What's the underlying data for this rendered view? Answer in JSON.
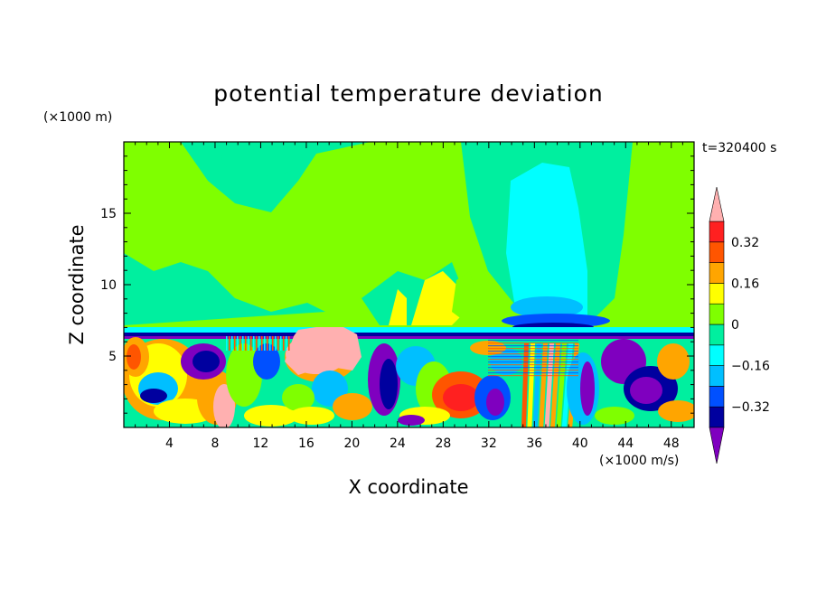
{
  "chart_data": {
    "type": "heatmap",
    "title": "potential temperature deviation",
    "xlabel": "X coordinate",
    "ylabel": "Z coordinate",
    "x_unit": "(×1000 m/s)",
    "y_unit": "(×1000 m)",
    "time_label": "t=320400 s",
    "xlim": [
      0,
      50
    ],
    "ylim": [
      0,
      20
    ],
    "x_ticks": [
      4,
      8,
      12,
      16,
      20,
      24,
      28,
      32,
      36,
      40,
      44,
      48
    ],
    "x_tick_labels": [
      "4",
      "8",
      "12",
      "16",
      "20",
      "24",
      "28",
      "32",
      "36",
      "40",
      "44",
      "48"
    ],
    "y_ticks": [
      5,
      10,
      15
    ],
    "y_tick_labels": [
      "5",
      "10",
      "15"
    ],
    "colorbar": {
      "levels": [
        -0.4,
        -0.32,
        -0.24,
        -0.16,
        -0.08,
        0,
        0.08,
        0.16,
        0.24,
        0.32,
        0.4
      ],
      "labels": [
        "0.32",
        "0.16",
        "0",
        "−0.16",
        "−0.32"
      ],
      "label_values": [
        0.32,
        0.16,
        0,
        -0.16,
        -0.32
      ],
      "colors_low_to_high": [
        "#3f0f9f",
        "#00009f",
        "#0050ff",
        "#00bfff",
        "#00ffff",
        "#00ef9f",
        "#7fff00",
        "#ffff00",
        "#ffa500",
        "#ff5500",
        "#ff2020"
      ],
      "under_color": "#7f00bf",
      "over_color": "#ffb0b0"
    },
    "background_color": "#7fff00"
  }
}
